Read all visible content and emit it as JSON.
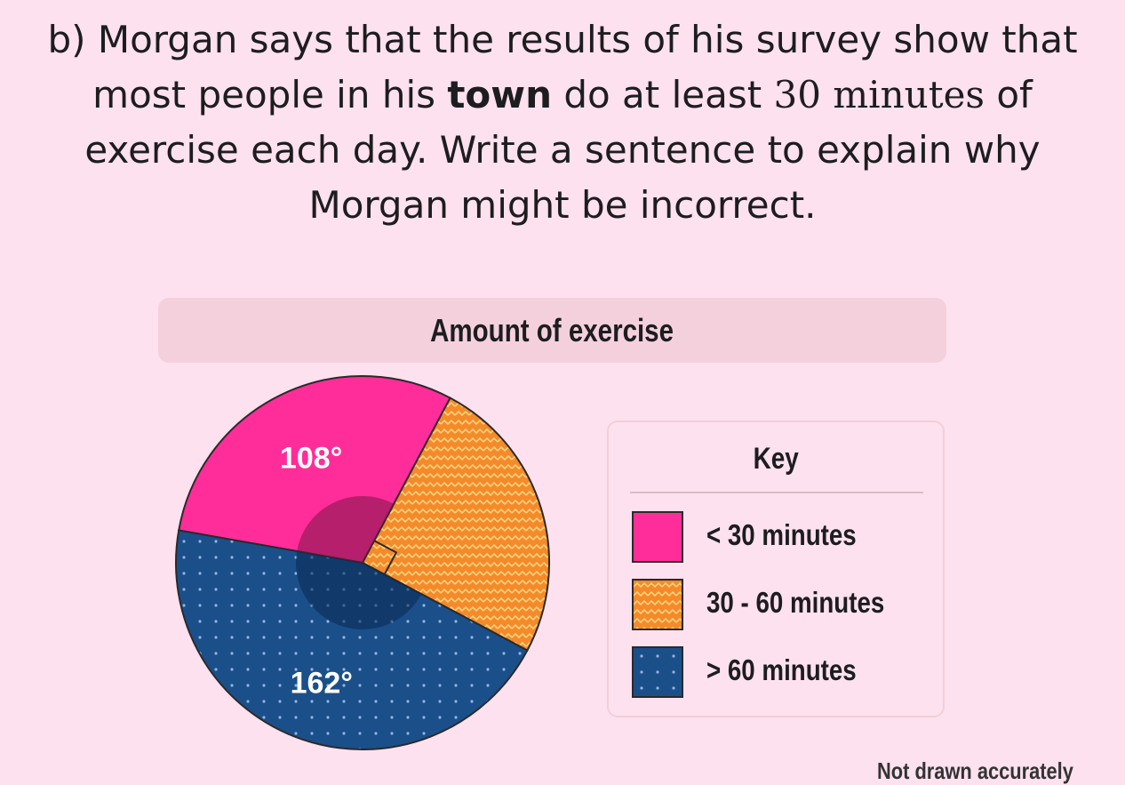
{
  "question": {
    "line1": "b) Morgan says that the results of his survey show that",
    "line2_pre": "most people in his ",
    "line2_bold": "town",
    "line2_mid": " do at least ",
    "line2_serif": "30 minutes",
    "line2_post": " of",
    "line3": "exercise each day. Write a sentence to explain why",
    "line4": "Morgan might be incorrect."
  },
  "chart_data": {
    "type": "pie",
    "title": "Amount of exercise",
    "unit": "degrees",
    "slices": [
      {
        "name": "< 30 minutes",
        "value": 108,
        "label": "108°",
        "color": "#ff2d99",
        "pattern": "solid"
      },
      {
        "name": "30 - 60 minutes",
        "value": 90,
        "label": "",
        "color": "#f58a2b",
        "pattern": "zigzag",
        "right_angle_marker": true
      },
      {
        "name": "> 60 minutes",
        "value": 162,
        "label": "162°",
        "color": "#1b4f8a",
        "pattern": "dots"
      }
    ],
    "legend": {
      "title": "Key",
      "position": "right"
    },
    "footnote": "Not drawn accurately"
  }
}
